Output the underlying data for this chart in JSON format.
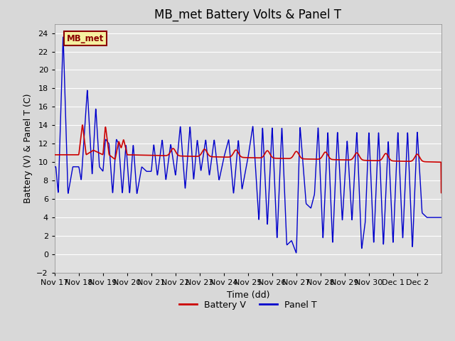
{
  "title": "MB_met Battery Volts & Panel T",
  "ylabel": "Battery (V) & Panel T (C)",
  "xlabel": "Time (dd)",
  "ylim": [
    -2,
    25
  ],
  "yticks": [
    -2,
    0,
    2,
    4,
    6,
    8,
    10,
    12,
    14,
    16,
    18,
    20,
    22,
    24
  ],
  "xlim": [
    0,
    16
  ],
  "xtick_positions": [
    0,
    1,
    2,
    3,
    4,
    5,
    6,
    7,
    8,
    9,
    10,
    11,
    12,
    13,
    14,
    15
  ],
  "xtick_labels": [
    "Nov 17",
    "Nov 18",
    "Nov 19",
    "Nov 20",
    "Nov 21",
    "Nov 22",
    "Nov 23",
    "Nov 24",
    "Nov 25",
    "Nov 26",
    "Nov 27",
    "Nov 28",
    "Nov 29",
    "Nov 30",
    "Dec 1",
    "Dec 2"
  ],
  "background_color": "#d8d8d8",
  "plot_bg_color": "#e0e0e0",
  "grid_color": "#ffffff",
  "battery_color": "#cc0000",
  "panel_color": "#0000cc",
  "legend_label_battery": "Battery V",
  "legend_label_panel": "Panel T",
  "station_label": "MB_met",
  "title_fontsize": 12,
  "axis_fontsize": 9,
  "tick_fontsize": 8
}
